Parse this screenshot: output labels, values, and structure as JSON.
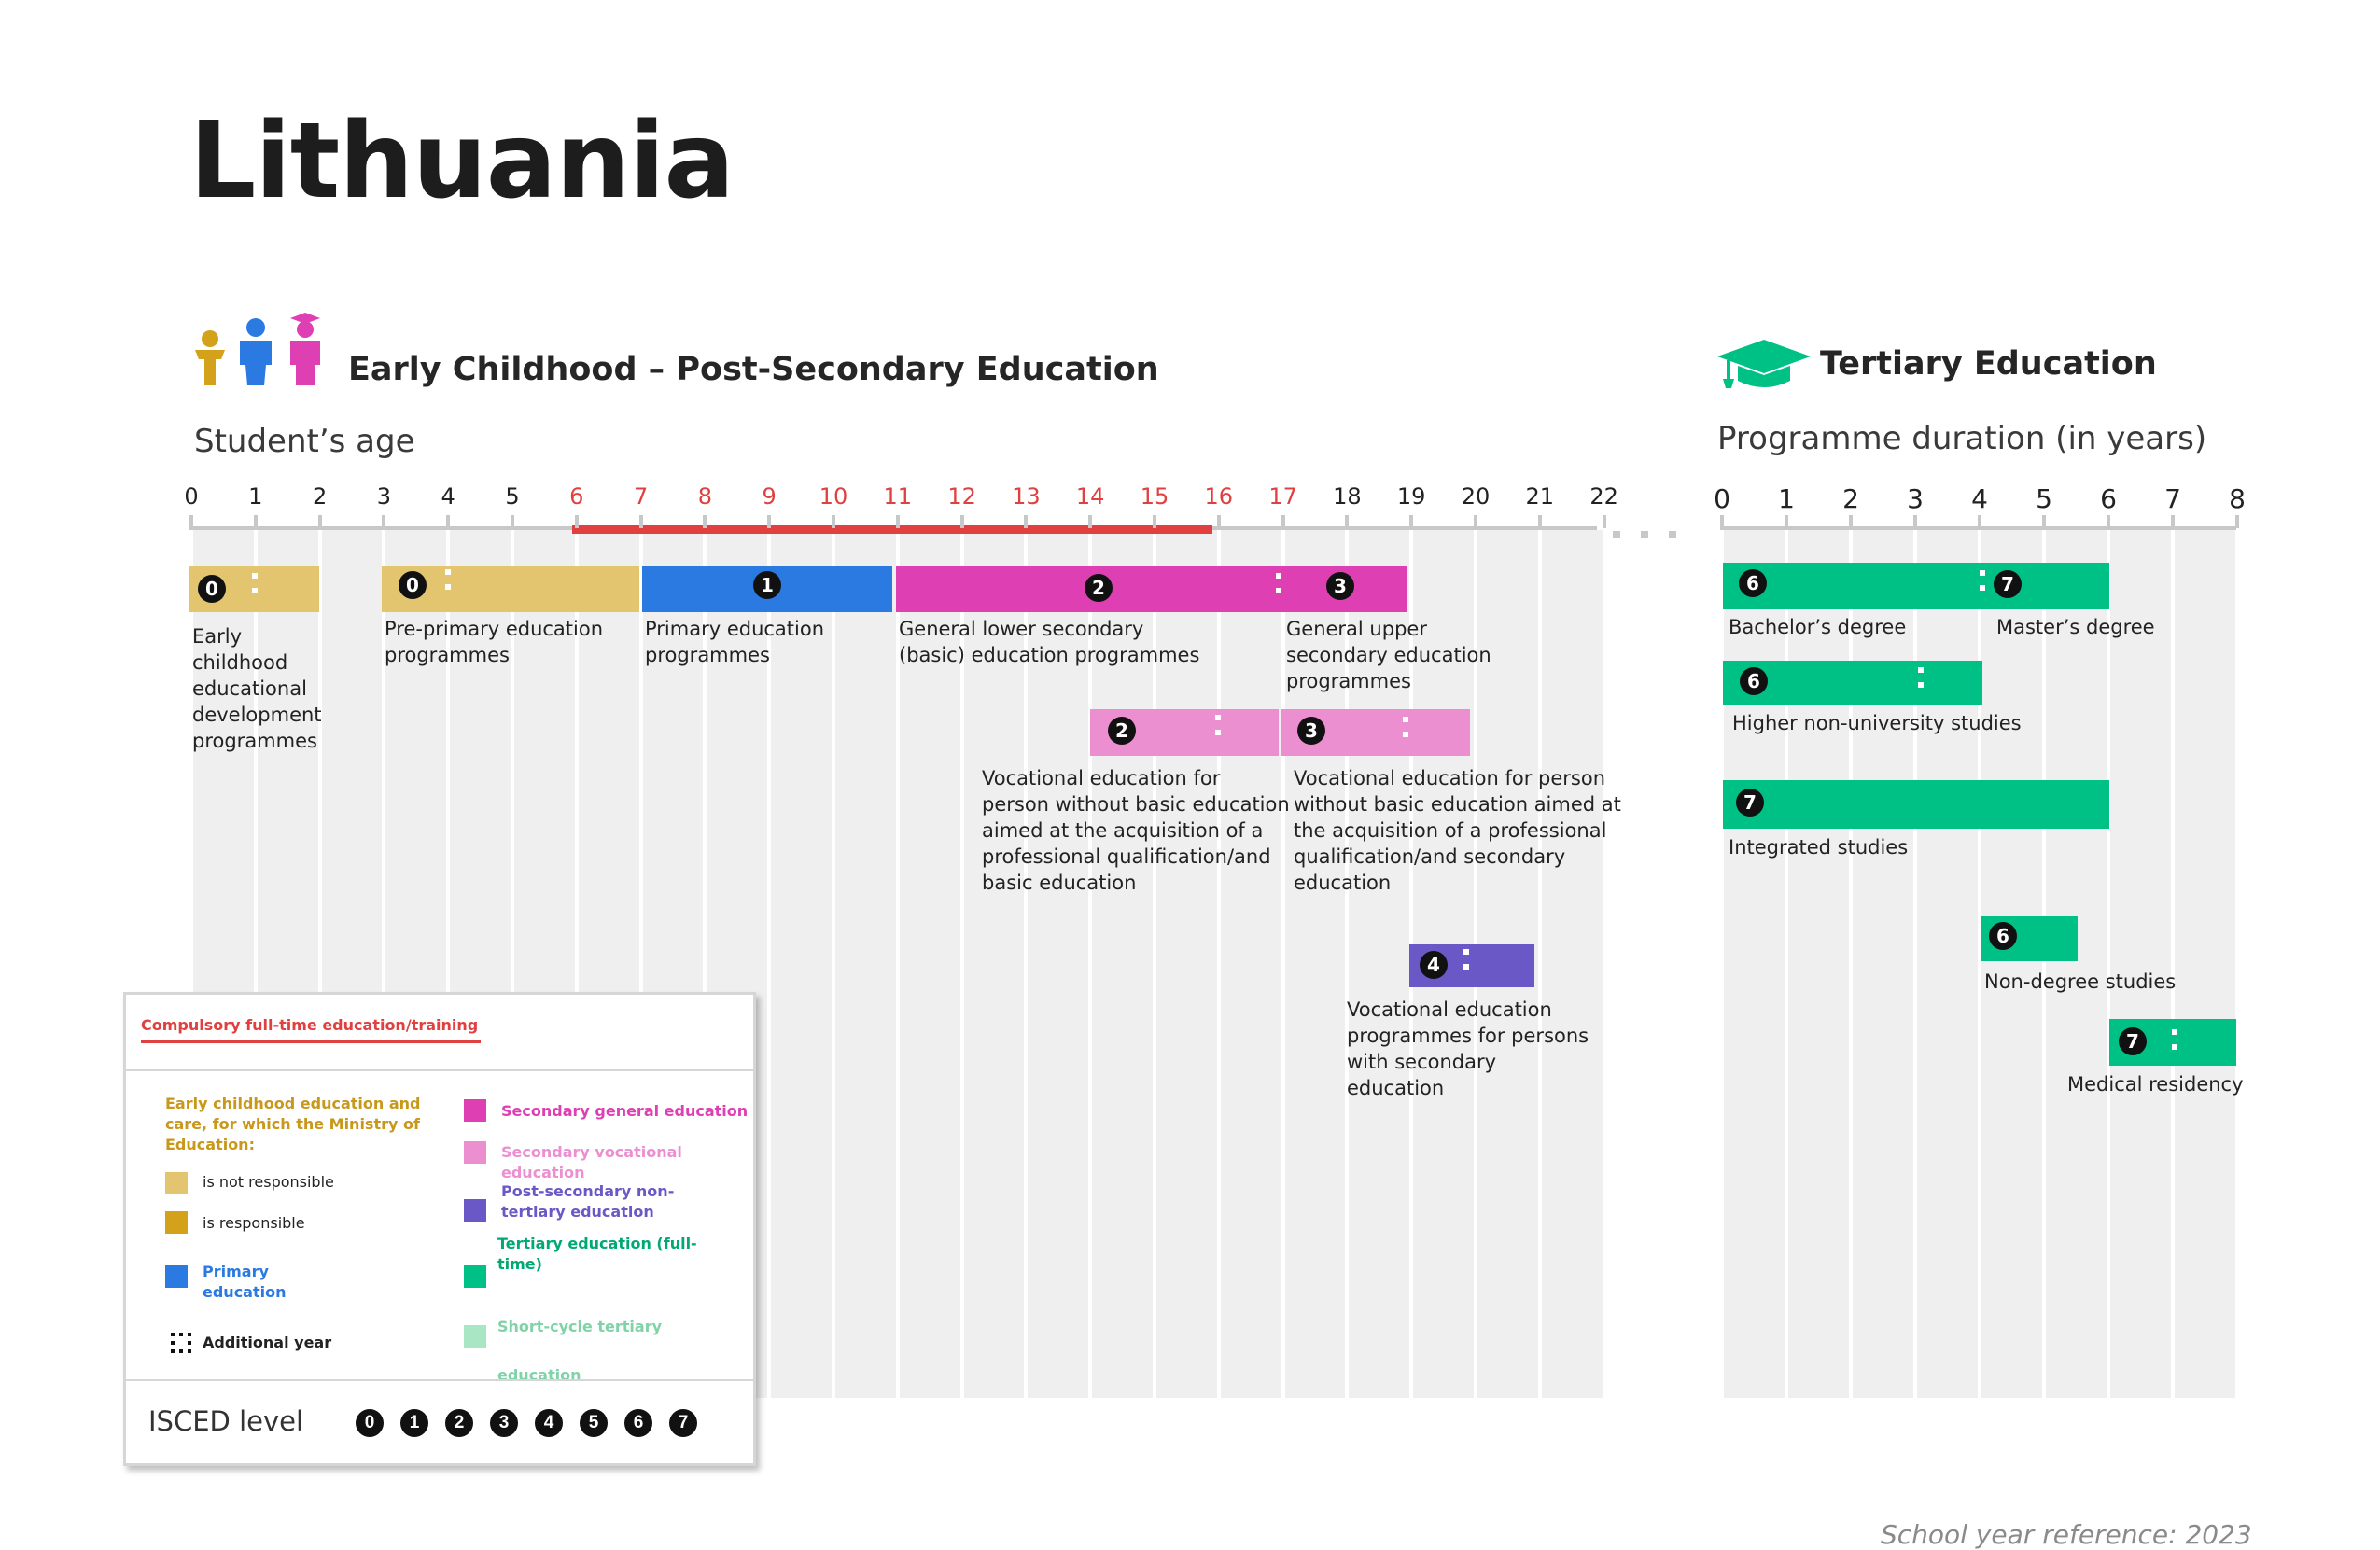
{
  "title": "Lithuania",
  "sections": {
    "left_title": "Early Childhood – Post-Secondary Education",
    "left_subtitle": "Student’s age",
    "right_title": "Tertiary Education",
    "right_subtitle": "Programme duration (in years)"
  },
  "age_ticks": [
    "0",
    "1",
    "2",
    "3",
    "4",
    "5",
    "6",
    "7",
    "8",
    "9",
    "10",
    "11",
    "12",
    "13",
    "14",
    "15",
    "16",
    "17",
    "18",
    "19",
    "20",
    "21",
    "22"
  ],
  "duration_ticks": [
    "0",
    "1",
    "2",
    "3",
    "4",
    "5",
    "6",
    "7",
    "8"
  ],
  "colors": {
    "ecec_not_responsible": "#e3c46f",
    "ecec_responsible": "#d4a21a",
    "primary": "#2a7ae2",
    "secondary_general": "#de3fb2",
    "secondary_vocational": "#ec8fd1",
    "post_secondary": "#6a58c7",
    "tertiary": "#00c185",
    "short_cycle": "#a8e6c4",
    "compulsory": "#e04040"
  },
  "chart_data": {
    "type": "table",
    "compulsory_age_range": [
      6,
      16
    ],
    "programmes": [
      {
        "name": "Early childhood educational development programmes",
        "isced": "0",
        "age_start": 0,
        "age_end": 2
      },
      {
        "name": "Pre-primary education programmes",
        "isced": "0",
        "age_start": 3,
        "age_end": 7
      },
      {
        "name": "Primary education programmes",
        "isced": "1",
        "age_start": 7,
        "age_end": 11
      },
      {
        "name": "General lower secondary (basic) education programmes",
        "isced": "2",
        "age_start": 11,
        "age_end": 17
      },
      {
        "name": "General upper secondary education programmes",
        "isced": "3",
        "age_start": 17,
        "age_end": 19
      },
      {
        "name": "Vocational education for person without basic education aimed at the acquisition of a professional qualification/and basic education",
        "isced": "2",
        "age_start": 14,
        "age_end": 17
      },
      {
        "name": "Vocational education for person without basic education aimed at the acquisition of a professional qualification/and secondary education",
        "isced": "3",
        "age_start": 17,
        "age_end": 20
      },
      {
        "name": "Vocational education programmes for persons with secondary education",
        "isced": "4",
        "age_start": 19,
        "age_end": 21
      }
    ],
    "tertiary": [
      {
        "name": "Bachelor’s degree",
        "isced": "6",
        "duration_start": 0,
        "duration_end": 4
      },
      {
        "name": "Master’s degree",
        "isced": "7",
        "duration_start": 4,
        "duration_end": 6
      },
      {
        "name": "Higher non-university studies",
        "isced": "6",
        "duration_start": 0,
        "duration_end": 4
      },
      {
        "name": "Integrated studies",
        "isced": "7",
        "duration_start": 0,
        "duration_end": 6
      },
      {
        "name": "Non-degree studies",
        "isced": "6",
        "duration_start": 4,
        "duration_end": 5.5
      },
      {
        "name": "Medical residency",
        "isced": "7",
        "duration_start": 6,
        "duration_end": 8
      }
    ]
  },
  "labels": {
    "ecd": "Early childhood educational development programmes",
    "preprimary": "Pre-primary education programmes",
    "primary": "Primary education programmes",
    "lower_sec": "General lower secondary (basic) education programmes",
    "upper_sec": "General upper secondary education programmes",
    "voc_basic": "Vocational education for person without basic education aimed at the acquisition of a professional qualification/and basic education",
    "voc_secondary": "Vocational education for person without basic education aimed at the acquisition of a professional qualification/and secondary education",
    "post_sec": "Vocational education programmes for persons with secondary education",
    "bachelor": "Bachelor’s degree",
    "master": "Master’s degree",
    "higher_nonuni": "Higher non-university studies",
    "integrated": "Integrated studies",
    "non_degree": "Non-degree studies",
    "medical": "Medical residency"
  },
  "legend": {
    "compulsory": "Compulsory full-time education/training",
    "ecec_heading": "Early childhood education and care, for which the Ministry of Education:",
    "not_responsible": "is not responsible",
    "responsible": "is responsible",
    "primary": "Primary education",
    "additional_year": "Additional year",
    "secondary_general": "Secondary general education",
    "secondary_vocational": "Secondary vocational education",
    "post_secondary": "Post-secondary non-tertiary education",
    "tertiary": "Tertiary education (full-time)",
    "short_cycle": "Short-cycle tertiary education",
    "isced_label": "ISCED level",
    "isced_levels": [
      "0",
      "1",
      "2",
      "3",
      "4",
      "5",
      "6",
      "7"
    ]
  },
  "footer": "School year reference: 2023"
}
